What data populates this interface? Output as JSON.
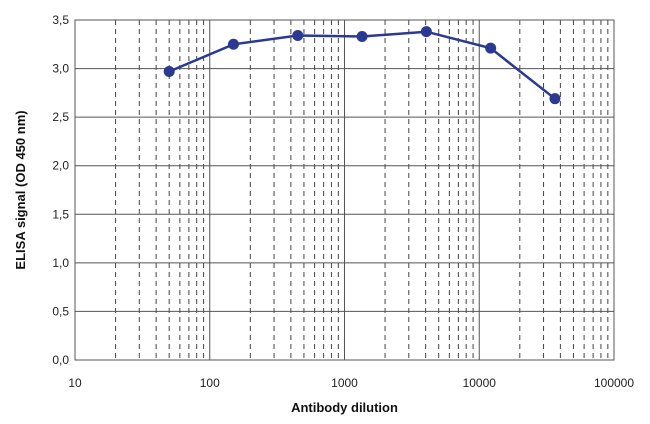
{
  "chart_data": {
    "type": "line",
    "x_scale": "log",
    "xlim": [
      10,
      100000
    ],
    "ylim": [
      0,
      3.5
    ],
    "xlabel": "Antibody dilution",
    "ylabel": "ELISA signal (OD 450 nm)",
    "x_tick_labels": [
      "10",
      "100",
      "1000",
      "10000",
      "100000"
    ],
    "y_tick_labels": [
      "0,0",
      "0,5",
      "1,0",
      "1,5",
      "2,0",
      "2,5",
      "3,0",
      "3,5"
    ],
    "grid": true,
    "series_color": "#2b3990",
    "series": [
      {
        "x": [
          50,
          150,
          450,
          1350,
          4050,
          12150,
          36450
        ],
        "y": [
          2.97,
          3.25,
          3.34,
          3.33,
          3.38,
          3.21,
          2.69
        ]
      }
    ]
  }
}
